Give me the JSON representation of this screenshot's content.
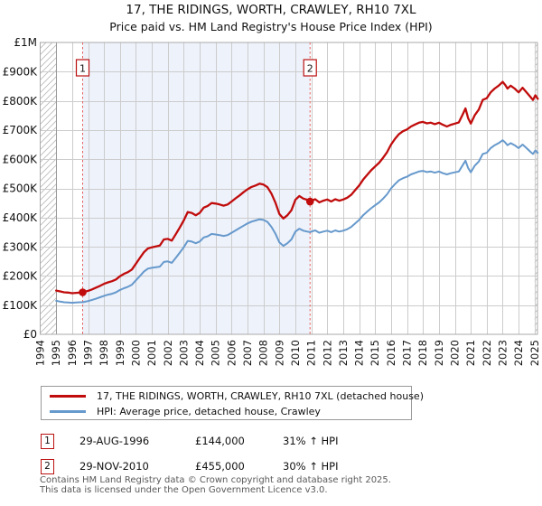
{
  "title": "17, THE RIDINGS, WORTH, CRAWLEY, RH10 7XL",
  "subtitle": "Price paid vs. HM Land Registry's House Price Index (HPI)",
  "legend": [
    {
      "label": "17, THE RIDINGS, WORTH, CRAWLEY, RH10 7XL (detached house)",
      "color": "#c00c0c"
    },
    {
      "label": "HPI: Average price, detached house, Crawley",
      "color": "#6699cc"
    }
  ],
  "sales": [
    {
      "num": "1",
      "date": "29-AUG-1996",
      "price": "£144,000",
      "hpi": "31% ↑ HPI"
    },
    {
      "num": "2",
      "date": "29-NOV-2010",
      "price": "£455,000",
      "hpi": "30% ↑ HPI"
    }
  ],
  "footer": [
    "Contains HM Land Registry data © Crown copyright and database right 2025.",
    "This data is licensed under the Open Government Licence v3.0."
  ],
  "chart_data": {
    "type": "line",
    "title": "17, THE RIDINGS, WORTH, CRAWLEY, RH10 7XL",
    "subtitle": "Price paid vs. HM Land Registry's House Price Index (HPI)",
    "x_range": [
      1994,
      2025
    ],
    "y_range_gbp": [
      0,
      1000000
    ],
    "grid": true,
    "legend_position": "bottom",
    "y_tick_labels": [
      "£0",
      "£100K",
      "£200K",
      "£300K",
      "£400K",
      "£500K",
      "£600K",
      "£700K",
      "£800K",
      "£900K",
      "£1M"
    ],
    "x_tick_labels": [
      "1994",
      "1995",
      "1996",
      "1997",
      "1998",
      "1999",
      "2000",
      "2001",
      "2002",
      "2003",
      "2004",
      "2005",
      "2006",
      "2007",
      "2008",
      "2009",
      "2010",
      "2011",
      "2012",
      "2013",
      "2014",
      "2015",
      "2016",
      "2017",
      "2018",
      "2019",
      "2020",
      "2021",
      "2022",
      "2023",
      "2024",
      "2025"
    ],
    "shaded_region_years": [
      1996.66,
      2010.92
    ],
    "hatch_regions_years": [
      [
        1994,
        1995
      ],
      [
        2025.0,
        2025.2
      ]
    ],
    "sale_markers": [
      {
        "label": "1",
        "year": 1996.66,
        "value_k": 144
      },
      {
        "label": "2",
        "year": 2010.92,
        "value_k": 455
      }
    ],
    "colors": {
      "property": "#c00c0c",
      "hpi": "#6699cc",
      "shade": "#eef2fb",
      "dashed": "#e66060",
      "marker_border": "#bb1111",
      "grid": "#cccccc",
      "frame": "#aaaaaa",
      "hatch": "#bbbbbb"
    },
    "series": [
      {
        "name": "price-paid-indexed",
        "legend": "17, THE RIDINGS, WORTH, CRAWLEY, RH10 7XL (detached house)",
        "unit": "GBP_thousands",
        "points": [
          [
            1995.0,
            150
          ],
          [
            1995.25,
            147
          ],
          [
            1995.5,
            144
          ],
          [
            1995.75,
            143
          ],
          [
            1996.0,
            141
          ],
          [
            1996.25,
            142
          ],
          [
            1996.5,
            143
          ],
          [
            1996.66,
            144
          ],
          [
            1997.0,
            149
          ],
          [
            1997.25,
            154
          ],
          [
            1997.5,
            160
          ],
          [
            1997.75,
            166
          ],
          [
            1998.0,
            173
          ],
          [
            1998.25,
            178
          ],
          [
            1998.5,
            182
          ],
          [
            1998.75,
            188
          ],
          [
            1999.0,
            199
          ],
          [
            1999.25,
            207
          ],
          [
            1999.5,
            213
          ],
          [
            1999.75,
            222
          ],
          [
            2000.0,
            242
          ],
          [
            2000.25,
            262
          ],
          [
            2000.5,
            281
          ],
          [
            2000.75,
            294
          ],
          [
            2001.0,
            298
          ],
          [
            2001.25,
            301
          ],
          [
            2001.5,
            304
          ],
          [
            2001.75,
            325
          ],
          [
            2002.0,
            327
          ],
          [
            2002.25,
            321
          ],
          [
            2002.5,
            343
          ],
          [
            2002.75,
            366
          ],
          [
            2003.0,
            390
          ],
          [
            2003.25,
            419
          ],
          [
            2003.5,
            416
          ],
          [
            2003.75,
            408
          ],
          [
            2004.0,
            416
          ],
          [
            2004.25,
            434
          ],
          [
            2004.5,
            440
          ],
          [
            2004.75,
            450
          ],
          [
            2005.0,
            448
          ],
          [
            2005.25,
            445
          ],
          [
            2005.5,
            441
          ],
          [
            2005.75,
            445
          ],
          [
            2006.0,
            455
          ],
          [
            2006.25,
            466
          ],
          [
            2006.5,
            476
          ],
          [
            2006.75,
            487
          ],
          [
            2007.0,
            497
          ],
          [
            2007.25,
            505
          ],
          [
            2007.5,
            510
          ],
          [
            2007.75,
            516
          ],
          [
            2008.0,
            513
          ],
          [
            2008.25,
            504
          ],
          [
            2008.5,
            482
          ],
          [
            2008.75,
            451
          ],
          [
            2009.0,
            412
          ],
          [
            2009.25,
            397
          ],
          [
            2009.5,
            408
          ],
          [
            2009.75,
            425
          ],
          [
            2010.0,
            461
          ],
          [
            2010.25,
            474
          ],
          [
            2010.5,
            465
          ],
          [
            2010.75,
            461
          ],
          [
            2010.92,
            455
          ],
          [
            2011.0,
            458
          ],
          [
            2011.25,
            463
          ],
          [
            2011.5,
            452
          ],
          [
            2011.75,
            458
          ],
          [
            2012.0,
            462
          ],
          [
            2012.25,
            455
          ],
          [
            2012.5,
            463
          ],
          [
            2012.75,
            458
          ],
          [
            2013.0,
            462
          ],
          [
            2013.25,
            468
          ],
          [
            2013.5,
            478
          ],
          [
            2013.75,
            494
          ],
          [
            2014.0,
            510
          ],
          [
            2014.25,
            530
          ],
          [
            2014.5,
            546
          ],
          [
            2014.75,
            562
          ],
          [
            2015.0,
            575
          ],
          [
            2015.25,
            588
          ],
          [
            2015.5,
            605
          ],
          [
            2015.75,
            624
          ],
          [
            2016.0,
            650
          ],
          [
            2016.25,
            670
          ],
          [
            2016.5,
            686
          ],
          [
            2016.75,
            696
          ],
          [
            2017.0,
            702
          ],
          [
            2017.25,
            712
          ],
          [
            2017.5,
            719
          ],
          [
            2017.75,
            725
          ],
          [
            2018.0,
            728
          ],
          [
            2018.25,
            723
          ],
          [
            2018.5,
            725
          ],
          [
            2018.75,
            720
          ],
          [
            2019.0,
            725
          ],
          [
            2019.25,
            718
          ],
          [
            2019.5,
            712
          ],
          [
            2019.75,
            718
          ],
          [
            2020.0,
            722
          ],
          [
            2020.25,
            726
          ],
          [
            2020.5,
            754
          ],
          [
            2020.67,
            774
          ],
          [
            2020.83,
            741
          ],
          [
            2021.0,
            722
          ],
          [
            2021.25,
            751
          ],
          [
            2021.5,
            770
          ],
          [
            2021.75,
            803
          ],
          [
            2022.0,
            809
          ],
          [
            2022.25,
            829
          ],
          [
            2022.5,
            842
          ],
          [
            2022.75,
            852
          ],
          [
            2023.0,
            865
          ],
          [
            2023.15,
            855
          ],
          [
            2023.3,
            842
          ],
          [
            2023.5,
            852
          ],
          [
            2023.75,
            842
          ],
          [
            2024.0,
            829
          ],
          [
            2024.25,
            845
          ],
          [
            2024.5,
            829
          ],
          [
            2024.75,
            813
          ],
          [
            2024.9,
            803
          ],
          [
            2025.05,
            819
          ],
          [
            2025.2,
            807
          ]
        ]
      },
      {
        "name": "hpi-average-detached-crawley",
        "legend": "HPI: Average price, detached house, Crawley",
        "unit": "GBP_thousands",
        "points": [
          [
            1995.0,
            115
          ],
          [
            1995.25,
            112
          ],
          [
            1995.5,
            110
          ],
          [
            1995.75,
            109
          ],
          [
            1996.0,
            108
          ],
          [
            1996.25,
            109
          ],
          [
            1996.5,
            110
          ],
          [
            1996.66,
            110
          ],
          [
            1997.0,
            114
          ],
          [
            1997.25,
            118
          ],
          [
            1997.5,
            122
          ],
          [
            1997.75,
            127
          ],
          [
            1998.0,
            132
          ],
          [
            1998.25,
            136
          ],
          [
            1998.5,
            139
          ],
          [
            1998.75,
            144
          ],
          [
            1999.0,
            152
          ],
          [
            1999.25,
            158
          ],
          [
            1999.5,
            163
          ],
          [
            1999.75,
            170
          ],
          [
            2000.0,
            185
          ],
          [
            2000.25,
            200
          ],
          [
            2000.5,
            215
          ],
          [
            2000.75,
            225
          ],
          [
            2001.0,
            228
          ],
          [
            2001.25,
            230
          ],
          [
            2001.5,
            232
          ],
          [
            2001.75,
            248
          ],
          [
            2002.0,
            250
          ],
          [
            2002.25,
            245
          ],
          [
            2002.5,
            262
          ],
          [
            2002.75,
            280
          ],
          [
            2003.0,
            298
          ],
          [
            2003.25,
            320
          ],
          [
            2003.5,
            318
          ],
          [
            2003.75,
            312
          ],
          [
            2004.0,
            318
          ],
          [
            2004.25,
            332
          ],
          [
            2004.5,
            336
          ],
          [
            2004.75,
            344
          ],
          [
            2005.0,
            342
          ],
          [
            2005.25,
            340
          ],
          [
            2005.5,
            337
          ],
          [
            2005.75,
            340
          ],
          [
            2006.0,
            348
          ],
          [
            2006.25,
            356
          ],
          [
            2006.5,
            364
          ],
          [
            2006.75,
            372
          ],
          [
            2007.0,
            380
          ],
          [
            2007.25,
            386
          ],
          [
            2007.5,
            390
          ],
          [
            2007.75,
            394
          ],
          [
            2008.0,
            392
          ],
          [
            2008.25,
            385
          ],
          [
            2008.5,
            368
          ],
          [
            2008.75,
            345
          ],
          [
            2009.0,
            315
          ],
          [
            2009.25,
            303
          ],
          [
            2009.5,
            312
          ],
          [
            2009.75,
            325
          ],
          [
            2010.0,
            352
          ],
          [
            2010.25,
            362
          ],
          [
            2010.5,
            355
          ],
          [
            2010.75,
            352
          ],
          [
            2010.92,
            350
          ],
          [
            2011.0,
            352
          ],
          [
            2011.25,
            356
          ],
          [
            2011.5,
            348
          ],
          [
            2011.75,
            352
          ],
          [
            2012.0,
            355
          ],
          [
            2012.25,
            350
          ],
          [
            2012.5,
            356
          ],
          [
            2012.75,
            352
          ],
          [
            2013.0,
            355
          ],
          [
            2013.25,
            360
          ],
          [
            2013.5,
            368
          ],
          [
            2013.75,
            380
          ],
          [
            2014.0,
            392
          ],
          [
            2014.25,
            408
          ],
          [
            2014.5,
            420
          ],
          [
            2014.75,
            432
          ],
          [
            2015.0,
            442
          ],
          [
            2015.25,
            452
          ],
          [
            2015.5,
            465
          ],
          [
            2015.75,
            480
          ],
          [
            2016.0,
            500
          ],
          [
            2016.25,
            515
          ],
          [
            2016.5,
            528
          ],
          [
            2016.75,
            535
          ],
          [
            2017.0,
            540
          ],
          [
            2017.25,
            548
          ],
          [
            2017.5,
            553
          ],
          [
            2017.75,
            558
          ],
          [
            2018.0,
            560
          ],
          [
            2018.25,
            556
          ],
          [
            2018.5,
            558
          ],
          [
            2018.75,
            554
          ],
          [
            2019.0,
            558
          ],
          [
            2019.25,
            552
          ],
          [
            2019.5,
            548
          ],
          [
            2019.75,
            552
          ],
          [
            2020.0,
            555
          ],
          [
            2020.25,
            558
          ],
          [
            2020.5,
            580
          ],
          [
            2020.67,
            595
          ],
          [
            2020.83,
            570
          ],
          [
            2021.0,
            555
          ],
          [
            2021.25,
            578
          ],
          [
            2021.5,
            592
          ],
          [
            2021.75,
            618
          ],
          [
            2022.0,
            622
          ],
          [
            2022.25,
            638
          ],
          [
            2022.5,
            648
          ],
          [
            2022.75,
            655
          ],
          [
            2023.0,
            665
          ],
          [
            2023.15,
            658
          ],
          [
            2023.3,
            648
          ],
          [
            2023.5,
            655
          ],
          [
            2023.75,
            648
          ],
          [
            2024.0,
            638
          ],
          [
            2024.25,
            650
          ],
          [
            2024.5,
            638
          ],
          [
            2024.75,
            625
          ],
          [
            2024.9,
            618
          ],
          [
            2025.05,
            630
          ],
          [
            2025.2,
            622
          ]
        ]
      }
    ]
  }
}
